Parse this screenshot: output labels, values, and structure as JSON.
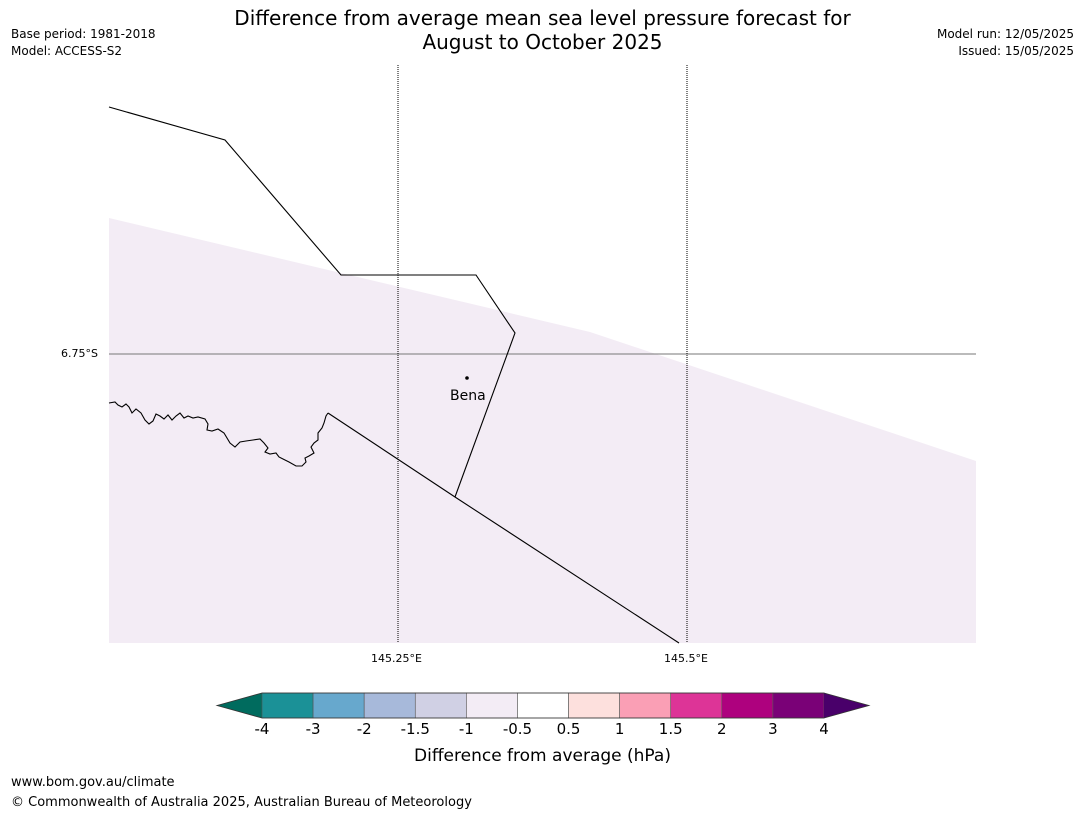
{
  "title": {
    "line1": "Difference from average mean sea level pressure forecast for",
    "line2": "August to October 2025"
  },
  "meta_left": {
    "base_period": "Base period: 1981-2018",
    "model": "Model: ACCESS-S2"
  },
  "meta_right": {
    "model_run": "Model run: 12/05/2025",
    "issued": "Issued: 15/05/2025"
  },
  "map": {
    "lat_labels": [
      "6.75°S"
    ],
    "lon_labels": [
      "145.25°E",
      "145.5°E"
    ],
    "place": {
      "name": "Bena"
    },
    "shading_colour": "#f3ecf5"
  },
  "colorbar": {
    "title": "Difference from average (hPa)",
    "tick_labels": [
      "-4",
      "-3",
      "-2",
      "-1.5",
      "-1",
      "-0.5",
      "0.5",
      "1",
      "1.5",
      "2",
      "3",
      "4"
    ],
    "colors": [
      "#006b5e",
      "#1b9197",
      "#67a8cd",
      "#a7b9da",
      "#d0d0e4",
      "#f3ecf5",
      "#ffffff",
      "#fde0dd",
      "#fa9fb5",
      "#dd3497",
      "#ae017e",
      "#7a0177",
      "#49006a"
    ]
  },
  "footer": {
    "url": "www.bom.gov.au/climate",
    "copyright": "© Commonwealth of Australia 2025, Australian Bureau of Meteorology"
  }
}
